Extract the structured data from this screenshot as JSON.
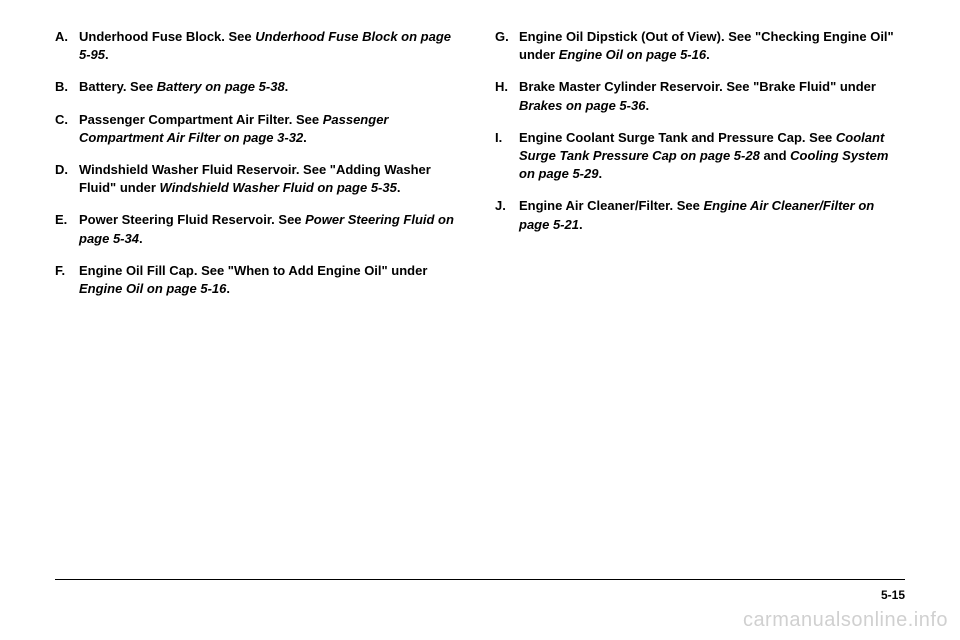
{
  "leftColumn": {
    "items": [
      {
        "marker": "A.",
        "parts": [
          {
            "text": "Underhood Fuse Block. See ",
            "style": "bold"
          },
          {
            "text": "Underhood Fuse Block on page 5-95",
            "style": "italic"
          },
          {
            "text": ".",
            "style": "bold"
          }
        ]
      },
      {
        "marker": "B.",
        "parts": [
          {
            "text": "Battery. See ",
            "style": "bold"
          },
          {
            "text": "Battery on page 5-38",
            "style": "italic"
          },
          {
            "text": ".",
            "style": "bold"
          }
        ]
      },
      {
        "marker": "C.",
        "parts": [
          {
            "text": "Passenger Compartment Air Filter. See ",
            "style": "bold"
          },
          {
            "text": "Passenger Compartment Air Filter on page 3-32",
            "style": "italic"
          },
          {
            "text": ".",
            "style": "bold"
          }
        ]
      },
      {
        "marker": "D.",
        "parts": [
          {
            "text": "Windshield Washer Fluid Reservoir. See \"Adding Washer Fluid\" under ",
            "style": "bold"
          },
          {
            "text": "Windshield Washer Fluid on page 5-35",
            "style": "italic"
          },
          {
            "text": ".",
            "style": "bold"
          }
        ]
      },
      {
        "marker": "E.",
        "parts": [
          {
            "text": "Power Steering Fluid Reservoir. See ",
            "style": "bold"
          },
          {
            "text": "Power Steering Fluid on page 5-34",
            "style": "italic"
          },
          {
            "text": ".",
            "style": "bold"
          }
        ]
      },
      {
        "marker": "F.",
        "parts": [
          {
            "text": "Engine Oil Fill Cap. See \"When to Add Engine Oil\" under ",
            "style": "bold"
          },
          {
            "text": "Engine Oil on page 5-16",
            "style": "italic"
          },
          {
            "text": ".",
            "style": "bold"
          }
        ]
      }
    ]
  },
  "rightColumn": {
    "items": [
      {
        "marker": "G.",
        "parts": [
          {
            "text": "Engine Oil Dipstick (Out of View). See \"Checking Engine Oil\" under ",
            "style": "bold"
          },
          {
            "text": "Engine Oil on page 5-16",
            "style": "italic"
          },
          {
            "text": ".",
            "style": "bold"
          }
        ]
      },
      {
        "marker": "H.",
        "parts": [
          {
            "text": "Brake Master Cylinder Reservoir. See \"Brake Fluid\" under ",
            "style": "bold"
          },
          {
            "text": "Brakes on page 5-36",
            "style": "italic"
          },
          {
            "text": ".",
            "style": "bold"
          }
        ]
      },
      {
        "marker": "I.",
        "parts": [
          {
            "text": "Engine Coolant Surge Tank and Pressure Cap. See ",
            "style": "bold"
          },
          {
            "text": "Coolant Surge Tank Pressure Cap on page 5-28",
            "style": "italic"
          },
          {
            "text": " and ",
            "style": "bold"
          },
          {
            "text": "Cooling System on page 5-29",
            "style": "italic"
          },
          {
            "text": ".",
            "style": "bold"
          }
        ]
      },
      {
        "marker": "J.",
        "parts": [
          {
            "text": "Engine Air Cleaner/Filter. See ",
            "style": "bold"
          },
          {
            "text": "Engine Air Cleaner/Filter on page 5-21",
            "style": "italic"
          },
          {
            "text": ".",
            "style": "bold"
          }
        ]
      }
    ]
  },
  "pageNumber": "5-15",
  "watermark": "carmanualsonline.info",
  "colors": {
    "text": "#000000",
    "background": "#ffffff",
    "watermark": "#d0d0d0"
  },
  "fontSize": {
    "body": 13,
    "pageNumber": 12,
    "watermark": 20
  }
}
